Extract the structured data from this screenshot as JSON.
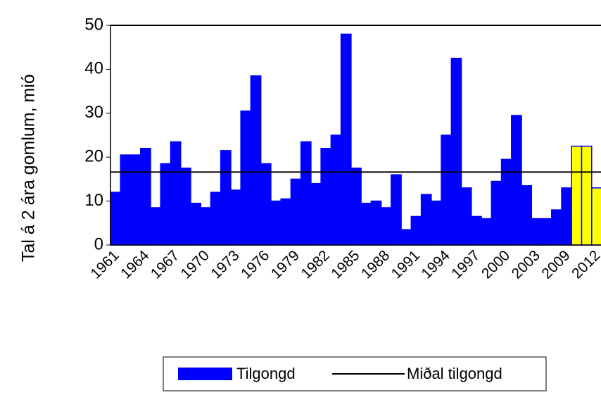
{
  "chart_data": {
    "type": "bar",
    "y_label": "Tal á 2 ára gomlum, mió",
    "categories": [
      "1961",
      null,
      null,
      "1964",
      null,
      null,
      "1967",
      null,
      null,
      "1970",
      null,
      null,
      "1973",
      null,
      null,
      "1976",
      null,
      null,
      "1979",
      null,
      null,
      "1982",
      null,
      null,
      "1985",
      null,
      null,
      "1988",
      null,
      null,
      "1991",
      null,
      null,
      "1994",
      null,
      null,
      "1997",
      null,
      null,
      "2000",
      null,
      null,
      "2003",
      null,
      null,
      "2009",
      null,
      null,
      "2012"
    ],
    "series": [
      {
        "name": "Tilgongd",
        "color": "#0000ff",
        "values": [
          12,
          20.5,
          20.5,
          22,
          8.5,
          18.5,
          23.5,
          17.5,
          9.5,
          8.5,
          12,
          21.5,
          12.5,
          30.5,
          38.5,
          18.5,
          10,
          10.5,
          15,
          23.5,
          14,
          22,
          25,
          48,
          17.5,
          9.5,
          10,
          8.5,
          16,
          3.5,
          6.5,
          11.5,
          10,
          25,
          42.5,
          13,
          6.5,
          6,
          14.5,
          19.5,
          29.5,
          13.5,
          6,
          6,
          8,
          13,
          22.5,
          22.5,
          13
        ],
        "bar_colors": [
          "#0000ff",
          "#0000ff",
          "#0000ff",
          "#0000ff",
          "#0000ff",
          "#0000ff",
          "#0000ff",
          "#0000ff",
          "#0000ff",
          "#0000ff",
          "#0000ff",
          "#0000ff",
          "#0000ff",
          "#0000ff",
          "#0000ff",
          "#0000ff",
          "#0000ff",
          "#0000ff",
          "#0000ff",
          "#0000ff",
          "#0000ff",
          "#0000ff",
          "#0000ff",
          "#0000ff",
          "#0000ff",
          "#0000ff",
          "#0000ff",
          "#0000ff",
          "#0000ff",
          "#0000ff",
          "#0000ff",
          "#0000ff",
          "#0000ff",
          "#0000ff",
          "#0000ff",
          "#0000ff",
          "#0000ff",
          "#0000ff",
          "#0000ff",
          "#0000ff",
          "#0000ff",
          "#0000ff",
          "#0000ff",
          "#0000ff",
          "#0000ff",
          "#0000ff",
          "#ffff00",
          "#ffff00",
          "#ffff00"
        ]
      },
      {
        "name": "Miðal tilgongd",
        "type": "hline",
        "color": "#000000",
        "value": 16.6
      }
    ],
    "ylim": [
      0,
      50
    ],
    "yticks": [
      0,
      10,
      20,
      30,
      40,
      50
    ]
  }
}
